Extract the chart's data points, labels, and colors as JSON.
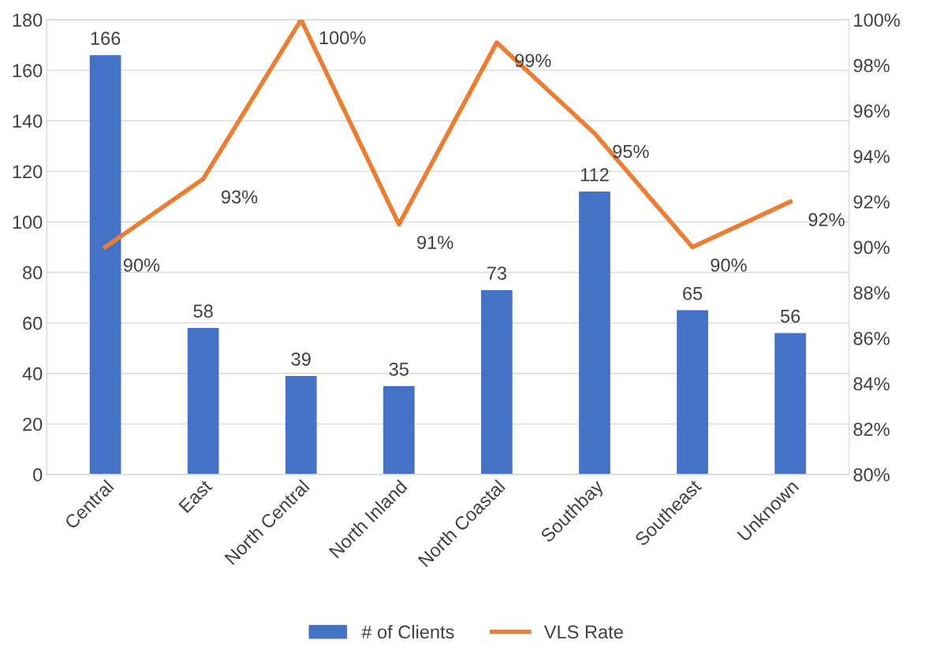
{
  "chart_data": {
    "type": "bar",
    "categories": [
      "Central",
      "East",
      "North Central",
      "North Inland",
      "North Coastal",
      "Southbay",
      "Southeast",
      "Unknown"
    ],
    "series": [
      {
        "name": "# of Clients",
        "color": "#4472c4",
        "values": [
          166,
          58,
          39,
          35,
          73,
          112,
          65,
          56
        ],
        "value_labels": [
          "166",
          "58",
          "39",
          "35",
          "73",
          "112",
          "65",
          "56"
        ]
      },
      {
        "name": "VLS Rate",
        "type": "line",
        "axis": "y2",
        "color": "#ed7d31",
        "values": [
          90,
          93,
          100,
          91,
          99,
          95,
          90,
          92
        ],
        "value_labels": [
          "90%",
          "93%",
          "100%",
          "91%",
          "99%",
          "95%",
          "90%",
          "92%"
        ]
      }
    ],
    "ylim": [
      0,
      180
    ],
    "yticks": [
      0,
      20,
      40,
      60,
      80,
      100,
      120,
      140,
      160,
      180
    ],
    "y2lim": [
      80,
      100
    ],
    "y2ticks": [
      {
        "value": 80,
        "label": "80%"
      },
      {
        "value": 82,
        "label": "82%"
      },
      {
        "value": 84,
        "label": "84%"
      },
      {
        "value": 86,
        "label": "86%"
      },
      {
        "value": 88,
        "label": "88%"
      },
      {
        "value": 90,
        "label": "90%"
      },
      {
        "value": 92,
        "label": "92%"
      },
      {
        "value": 94,
        "label": "94%"
      },
      {
        "value": 96,
        "label": "96%"
      },
      {
        "value": 98,
        "label": "98%"
      },
      {
        "value": 100,
        "label": "100%"
      }
    ],
    "grid": "y",
    "legend": "bottom",
    "marker": "none",
    "line_style": "solid"
  }
}
